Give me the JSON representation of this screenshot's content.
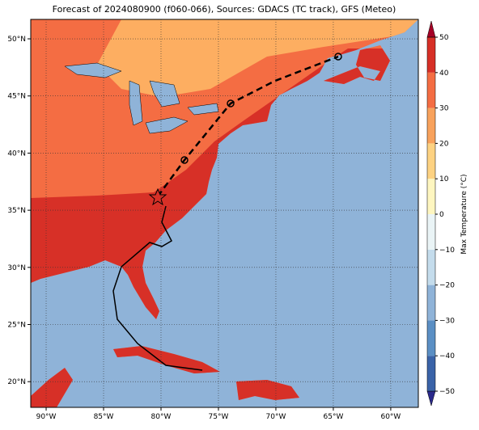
{
  "chart_data": {
    "type": "map",
    "title": "Forecast of 2024080900 (f060-066), Sources: GDACS (TC track), GFS (Meteo)",
    "xlim": [
      -91.34,
      -57.6
    ],
    "ylim": [
      17.75,
      51.7
    ],
    "xticks": [
      {
        "value": -90,
        "label": "90°W"
      },
      {
        "value": -85,
        "label": "85°W"
      },
      {
        "value": -80,
        "label": "80°W"
      },
      {
        "value": -75,
        "label": "75°W"
      },
      {
        "value": -70,
        "label": "70°W"
      },
      {
        "value": -65,
        "label": "65°W"
      },
      {
        "value": -60,
        "label": "60°W"
      }
    ],
    "yticks": [
      {
        "value": 20,
        "label": "20°N"
      },
      {
        "value": 25,
        "label": "25°N"
      },
      {
        "value": 30,
        "label": "30°N"
      },
      {
        "value": 35,
        "label": "35°N"
      },
      {
        "value": 40,
        "label": "40°N"
      },
      {
        "value": 45,
        "label": "45°N"
      },
      {
        "value": 50,
        "label": "50°N"
      }
    ],
    "grid": true,
    "colorbar": {
      "label": "Max Temperature (°C)",
      "lim": [
        -50,
        50
      ],
      "ticks": [
        {
          "value": -50,
          "label": "−50"
        },
        {
          "value": -40,
          "label": "−40"
        },
        {
          "value": -30,
          "label": "−30"
        },
        {
          "value": -20,
          "label": "−20"
        },
        {
          "value": -10,
          "label": "−10"
        },
        0,
        10,
        20,
        30,
        40,
        50
      ],
      "colors": [
        "#2b2a8c",
        "#3a63a8",
        "#5b8fc4",
        "#8fb3d8",
        "#c4dcec",
        "#eaf4f6",
        "#fef6c0",
        "#fdd282",
        "#f8a25c",
        "#f46d43",
        "#d73027",
        "#a50026"
      ]
    }
  }
}
